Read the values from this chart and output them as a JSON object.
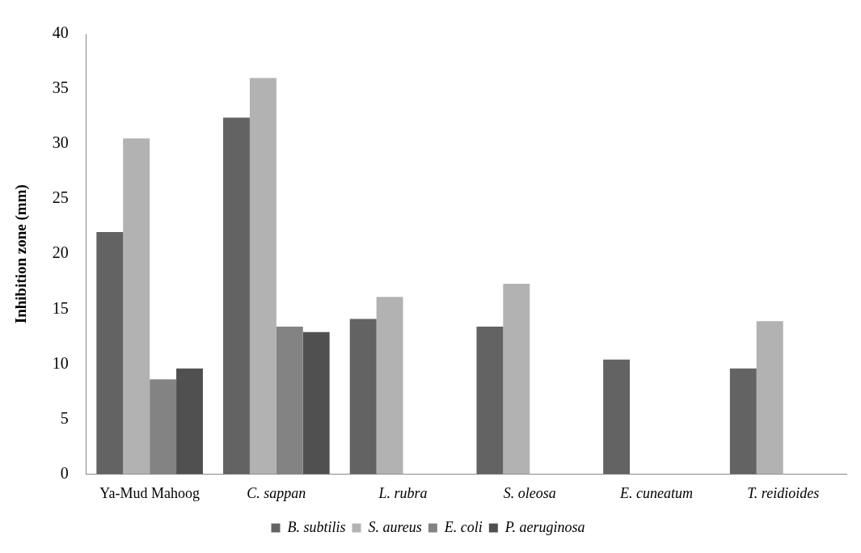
{
  "chart_data": {
    "type": "bar",
    "ylabel": "Inhibition zone (mm)",
    "categories": [
      "Ya-Mud Mahoog",
      "C. sappan",
      "L. rubra",
      "S. oleosa",
      "E. cuneatum",
      "T. reidioides"
    ],
    "series": [
      {
        "name": "B. subtilis",
        "color": "#636363",
        "values": [
          22,
          32.4,
          14.1,
          13.4,
          10.4,
          9.6
        ]
      },
      {
        "name": "S. aureus",
        "color": "#b2b2b2",
        "values": [
          30.5,
          36,
          16.1,
          17.3,
          null,
          13.9
        ]
      },
      {
        "name": "E. coli",
        "color": "#838383",
        "values": [
          8.6,
          13.4,
          null,
          null,
          null,
          null
        ]
      },
      {
        "name": "P. aeruginosa",
        "color": "#505050",
        "values": [
          9.6,
          12.9,
          null,
          null,
          null,
          null
        ]
      }
    ],
    "ylim": [
      0,
      40
    ],
    "yticks": [
      0,
      5,
      10,
      15,
      20,
      25,
      30,
      35,
      40
    ],
    "grid": false,
    "legend": "bottom"
  }
}
